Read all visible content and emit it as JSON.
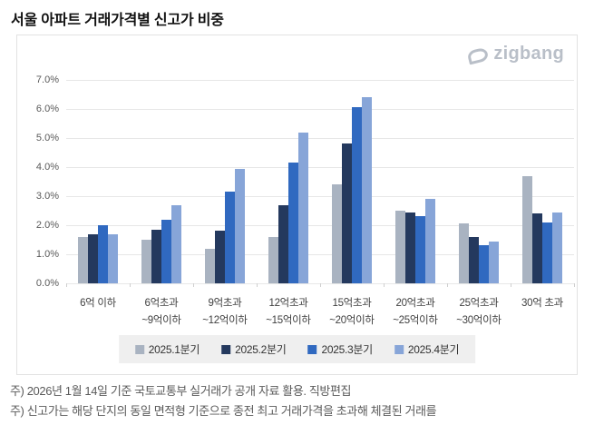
{
  "page": {
    "title": "서울 아파트 거래가격별 신고가 비중"
  },
  "logo": {
    "text": "zigbang",
    "color": "#b9bfc8"
  },
  "chart_data": {
    "type": "bar",
    "title": "서울 아파트 거래가격별 신고가 비중",
    "categories": [
      [
        "6억 이하"
      ],
      [
        "6억초과",
        "~9억이하"
      ],
      [
        "9억초과",
        "~12억이하"
      ],
      [
        "12억초과",
        "~15억이하"
      ],
      [
        "15억초과",
        "~20억이하"
      ],
      [
        "20억초과",
        "~25억이하"
      ],
      [
        "25억초과",
        "~30억이하"
      ],
      [
        "30억 초과"
      ]
    ],
    "series": [
      {
        "name": "2025.1분기",
        "color": "#a9b3c1",
        "values": [
          1.6,
          1.5,
          1.2,
          1.6,
          3.4,
          2.5,
          2.05,
          3.7
        ]
      },
      {
        "name": "2025.2분기",
        "color": "#24395e",
        "values": [
          1.7,
          1.85,
          1.8,
          2.7,
          4.8,
          2.45,
          1.6,
          2.4
        ]
      },
      {
        "name": "2025.3분기",
        "color": "#3069c0",
        "values": [
          2.0,
          2.2,
          3.15,
          4.15,
          6.05,
          2.3,
          1.3,
          2.1
        ]
      },
      {
        "name": "2025.4분기",
        "color": "#87a5d8",
        "values": [
          1.7,
          2.7,
          3.95,
          5.2,
          6.4,
          2.9,
          1.45,
          2.45
        ]
      }
    ],
    "xlabel": "",
    "ylabel": "",
    "ylim": [
      0,
      7
    ],
    "ytick_step": 1,
    "ytick_labels": [
      "0.0%",
      "1.0%",
      "2.0%",
      "3.0%",
      "4.0%",
      "5.0%",
      "6.0%",
      "7.0%"
    ],
    "grid": true,
    "legend_position": "bottom"
  },
  "footnotes": [
    "주) 2026년 1월 14일 기준 국토교통부 실거래가 공개 자료 활용. 직방편집",
    "주) 신고가는 해당 단지의 동일 면적형 기준으로 종전 최고 거래가격을 초과해 체결된 거래를"
  ]
}
